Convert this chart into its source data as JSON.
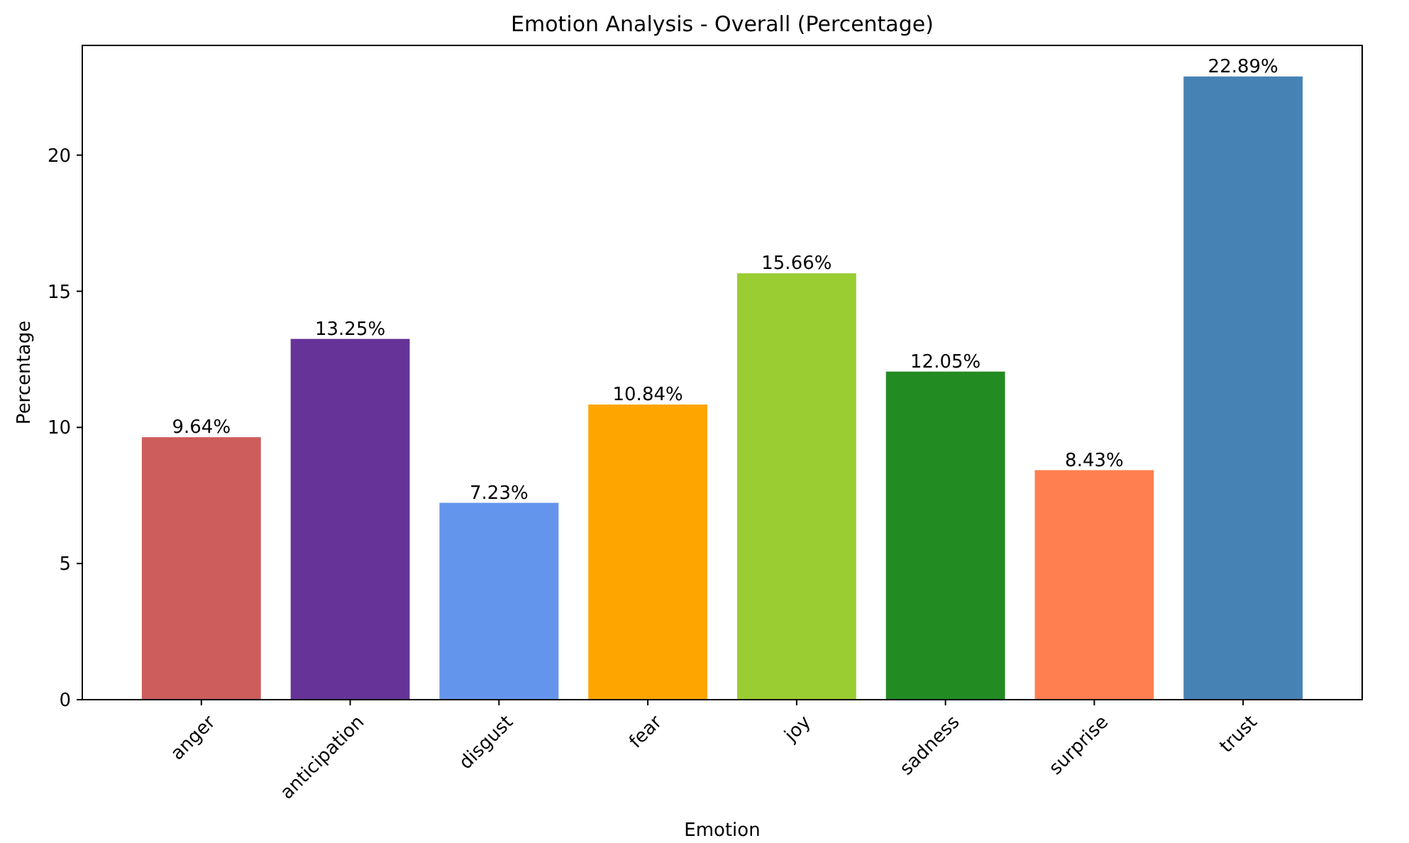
{
  "chart_data": {
    "type": "bar",
    "title": "Emotion Analysis - Overall (Percentage)",
    "xlabel": "Emotion",
    "ylabel": "Percentage",
    "categories": [
      "anger",
      "anticipation",
      "disgust",
      "fear",
      "joy",
      "sadness",
      "surprise",
      "trust"
    ],
    "values": [
      9.64,
      13.25,
      7.23,
      10.84,
      15.66,
      12.05,
      8.43,
      22.89
    ],
    "colors": [
      "#cd5c5c",
      "#663399",
      "#6495ed",
      "#ffa500",
      "#9acd32",
      "#228b22",
      "#ff7f50",
      "#4682b4"
    ],
    "value_labels": [
      "9.64%",
      "13.25%",
      "7.23%",
      "10.84%",
      "15.66%",
      "12.05%",
      "8.43%",
      "22.89%"
    ],
    "ylim": [
      0,
      24.03
    ],
    "yticks": [
      0,
      5,
      10,
      15,
      20
    ],
    "grid": false
  }
}
